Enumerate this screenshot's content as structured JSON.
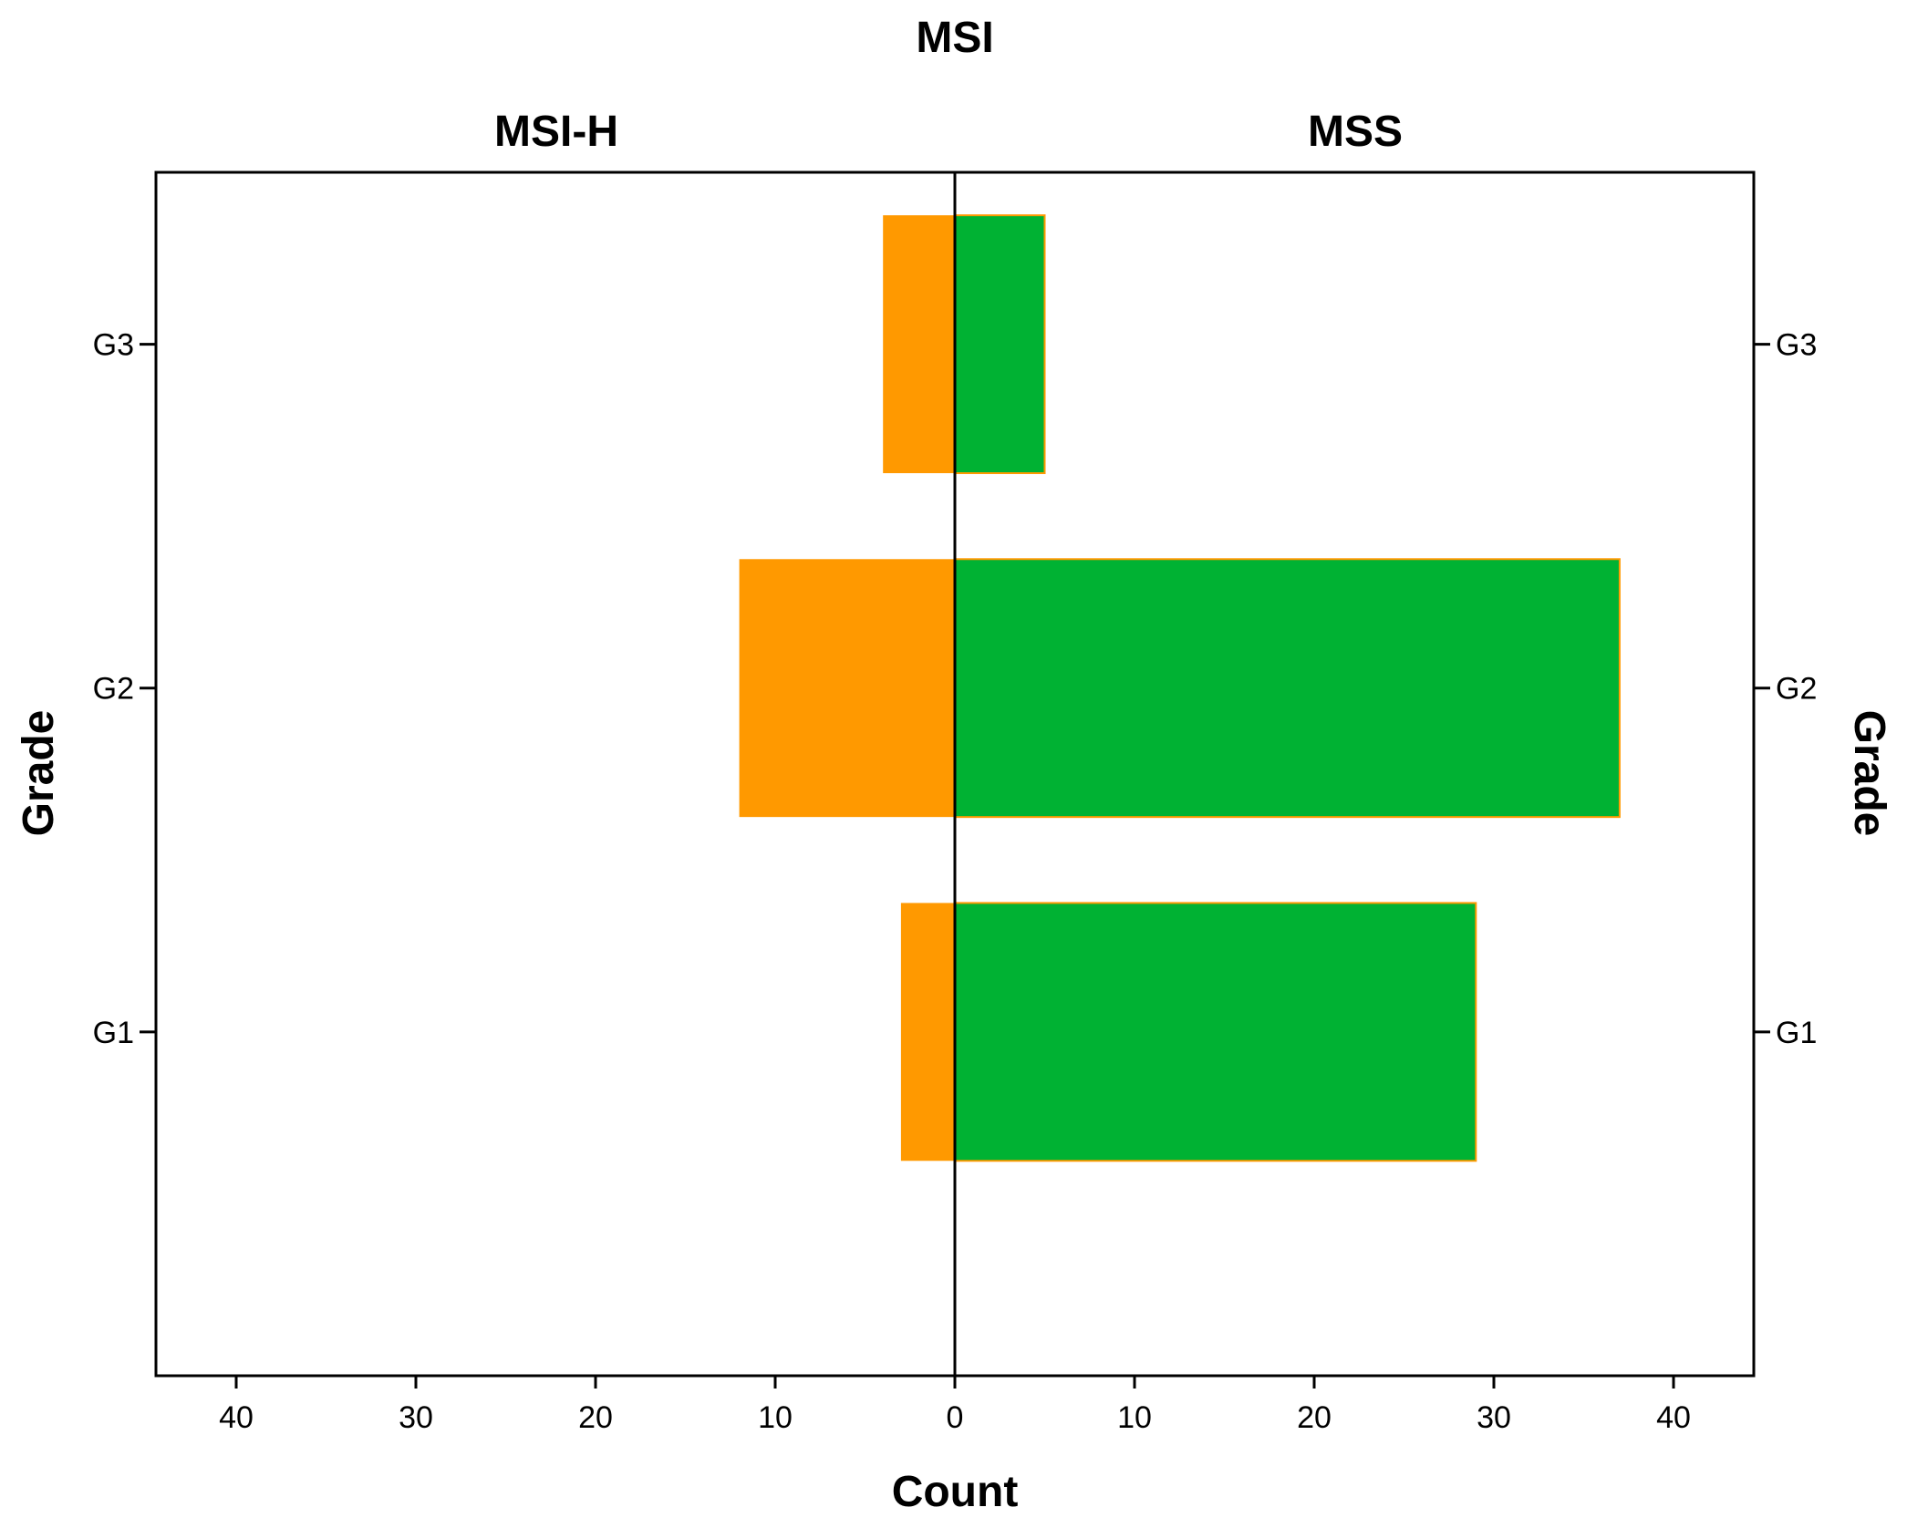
{
  "chart_data": {
    "type": "bar",
    "orientation": "horizontal",
    "layout": "back-to-back population pyramid",
    "title": "MSI",
    "panels": [
      "MSI-H",
      "MSS"
    ],
    "categories": [
      "G1",
      "G2",
      "G3"
    ],
    "series": [
      {
        "name": "MSI-H",
        "values": [
          3,
          12,
          4
        ],
        "color": "#FF9900"
      },
      {
        "name": "MSS",
        "values": [
          29,
          37,
          5
        ],
        "color": "#00B233"
      }
    ],
    "xlabel": "Count",
    "ylabel": "Grade",
    "xlim": [
      0,
      44
    ],
    "xticks": [
      0,
      10,
      20,
      30,
      40
    ],
    "xtick_labels": [
      "0",
      "10",
      "20",
      "30",
      "40"
    ],
    "grid": false,
    "legend": "none"
  }
}
